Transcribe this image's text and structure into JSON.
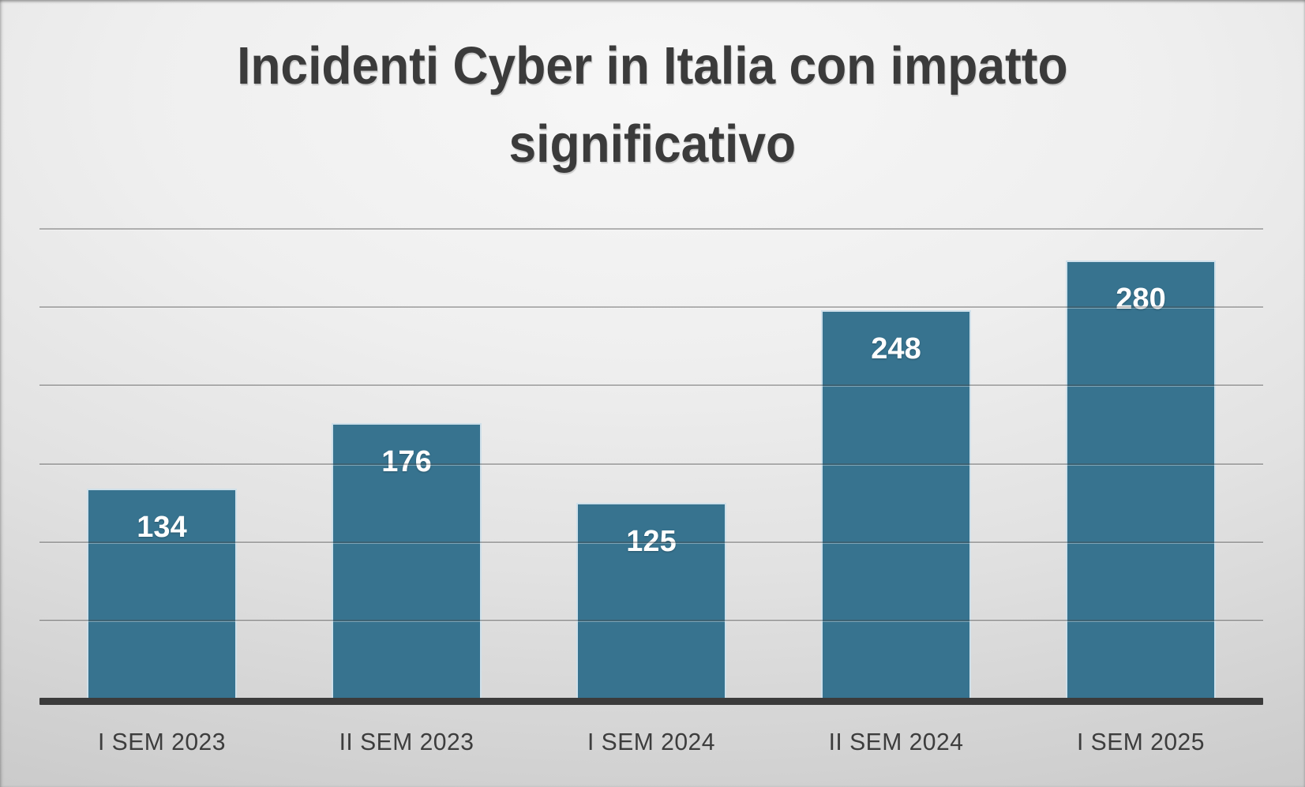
{
  "chart_data": {
    "type": "bar",
    "title": "Incidenti Cyber in Italia con impatto significativo",
    "categories": [
      "I SEM 2023",
      "II SEM 2023",
      "I SEM 2024",
      "II SEM 2024",
      "I SEM 2025"
    ],
    "values": [
      134,
      176,
      125,
      248,
      280
    ],
    "xlabel": "",
    "ylabel": "",
    "ylim": [
      0,
      300
    ],
    "gridline_step": 50,
    "grid": true,
    "legend_position": "none",
    "data_labels_position": "inside-end",
    "y_tick_labels_visible": false,
    "colors": {
      "bar": "#37738f",
      "bar_border": "#cfe0ea",
      "gridline": "rgba(70,70,70,0.38)",
      "axis_line": "#3b3b3b",
      "title_text": "#3b3b3b",
      "x_label_text": "#3d3d3d",
      "data_label_text": "#ffffff"
    }
  }
}
